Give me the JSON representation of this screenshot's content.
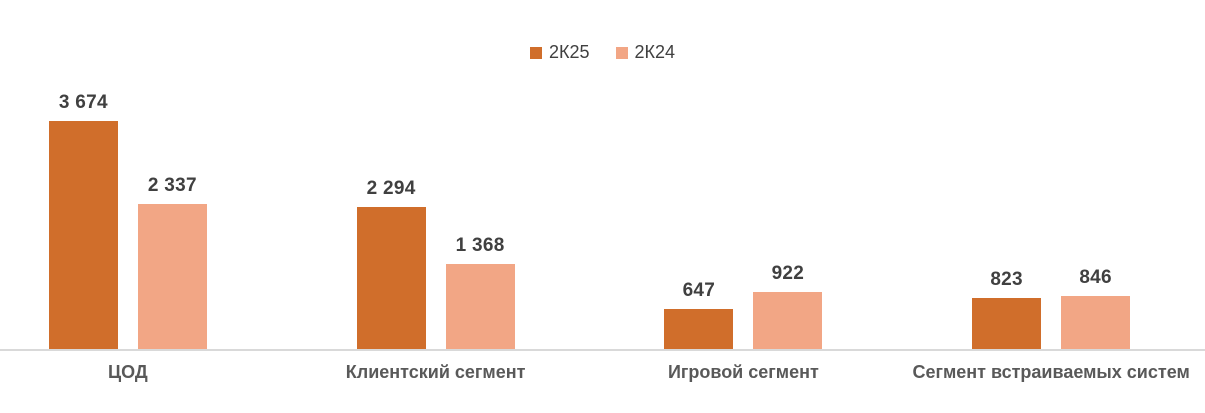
{
  "chart_data": {
    "type": "bar",
    "title": "",
    "xlabel": "",
    "ylabel": "",
    "categories": [
      "ЦОД",
      "Клиентский сегмент",
      "Игровой сегмент",
      "Сегмент встраиваемых систем"
    ],
    "series": [
      {
        "name": "2К25",
        "color": "#D06E2B",
        "values": [
          3674,
          2294,
          647,
          823
        ],
        "labels": [
          "3 674",
          "2 294",
          "647",
          "823"
        ]
      },
      {
        "name": "2К24",
        "color": "#F2A685",
        "values": [
          2337,
          1368,
          922,
          846
        ],
        "labels": [
          "2 337",
          "1 368",
          "922",
          "846"
        ]
      }
    ],
    "ylim": [
      0,
      3674
    ],
    "grid": false,
    "legend_position": "top-center",
    "axis_line_color": "#d9d9d9",
    "value_label_color": "#404040",
    "category_label_color": "#595959",
    "background_color": "#ffffff"
  }
}
